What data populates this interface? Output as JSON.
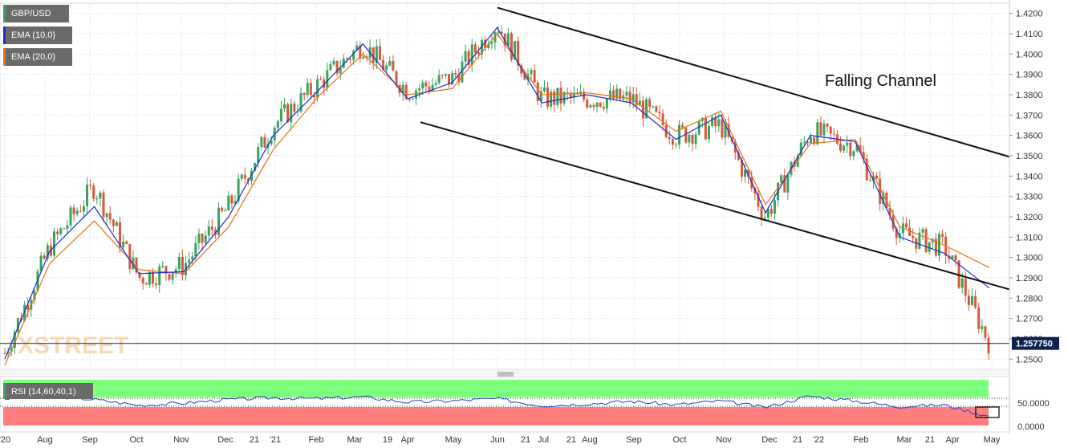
{
  "legend": {
    "symbol": "GBP/USD",
    "ema10_label": "EMA (10,0)",
    "ema20_label": "EMA (20,0)",
    "ema10_color": "#1a2fd0",
    "ema20_color": "#e8701a"
  },
  "annotation": "Falling Channel",
  "watermark": "XSTREET",
  "price_tag": "1.257750",
  "rsi_label": "RSI (14,60,40,1)",
  "colors": {
    "up_candle": "#3aa35c",
    "down_candle": "#d35a3c",
    "rsi_line": "#2b3ec7",
    "rsi_upper_band": "#7cff7c",
    "rsi_lower_band": "#ff7f7f",
    "price_tag_bg": "#0d2352"
  },
  "chart_data": [
    {
      "type": "candlestick",
      "title": "GBP/USD",
      "ylim": [
        1.245,
        1.425
      ],
      "y_ticks": [
        "1.2500",
        "1.2600",
        "1.2700",
        "1.2800",
        "1.2900",
        "1.3000",
        "1.3100",
        "1.3200",
        "1.3300",
        "1.3400",
        "1.3500",
        "1.3600",
        "1.3700",
        "1.3800",
        "1.3900",
        "1.4000",
        "1.4100",
        "1.4200"
      ],
      "x_ticks": [
        "'20",
        "Aug",
        "Sep",
        "Oct",
        "Nov",
        "Dec",
        "21",
        "'21",
        "Feb",
        "Mar",
        "19",
        "Apr",
        "May",
        "Jun",
        "21",
        "Jul",
        "21",
        "Aug",
        "Sep",
        "Oct",
        "Nov",
        "Dec",
        "21",
        "'22",
        "Feb",
        "Mar",
        "21",
        "Apr",
        "May"
      ],
      "series": [
        {
          "name": "GBP/USD",
          "x": [
            "Jul 2020",
            "Aug 2020",
            "Sep 2020",
            "Oct 2020",
            "Nov 2020",
            "Dec 2020",
            "Jan 2021",
            "Feb 2021",
            "Mar 2021",
            "Apr 2021",
            "May 2021",
            "Jun 2021",
            "Jul 2021",
            "Aug 2021",
            "Sep 2021",
            "Oct 2021",
            "Nov 2021",
            "Dec 2021",
            "Jan 2022",
            "Feb 2022",
            "Mar 2022",
            "Apr 2022",
            "end Apr 2022"
          ],
          "values": [
            1.253,
            1.305,
            1.335,
            1.29,
            1.296,
            1.325,
            1.365,
            1.385,
            1.405,
            1.382,
            1.388,
            1.415,
            1.378,
            1.378,
            1.378,
            1.36,
            1.365,
            1.32,
            1.362,
            1.355,
            1.312,
            1.305,
            1.2578
          ]
        },
        {
          "name": "EMA (10,0)",
          "values": [
            1.25,
            1.303,
            1.325,
            1.292,
            1.293,
            1.32,
            1.36,
            1.382,
            1.405,
            1.378,
            1.386,
            1.413,
            1.376,
            1.38,
            1.376,
            1.358,
            1.37,
            1.322,
            1.36,
            1.357,
            1.31,
            1.302,
            1.285
          ]
        },
        {
          "name": "EMA (20,0)",
          "values": [
            1.247,
            1.297,
            1.318,
            1.294,
            1.292,
            1.315,
            1.353,
            1.379,
            1.4,
            1.38,
            1.383,
            1.41,
            1.38,
            1.381,
            1.378,
            1.362,
            1.372,
            1.326,
            1.356,
            1.358,
            1.315,
            1.306,
            1.295
          ]
        }
      ],
      "last_price": 1.25775,
      "annotations": [
        "Falling Channel"
      ]
    },
    {
      "type": "line",
      "title": "RSI (14,60,40,1)",
      "ylim": [
        0,
        100
      ],
      "y_ticks": [
        "0.0000",
        "50.0000"
      ],
      "bands": {
        "upper": 60,
        "lower": 40
      },
      "series": [
        {
          "name": "RSI",
          "values": [
            60,
            66,
            58,
            45,
            50,
            58,
            62,
            60,
            64,
            52,
            55,
            60,
            44,
            48,
            54,
            46,
            55,
            40,
            66,
            55,
            42,
            46,
            20
          ]
        }
      ]
    }
  ]
}
